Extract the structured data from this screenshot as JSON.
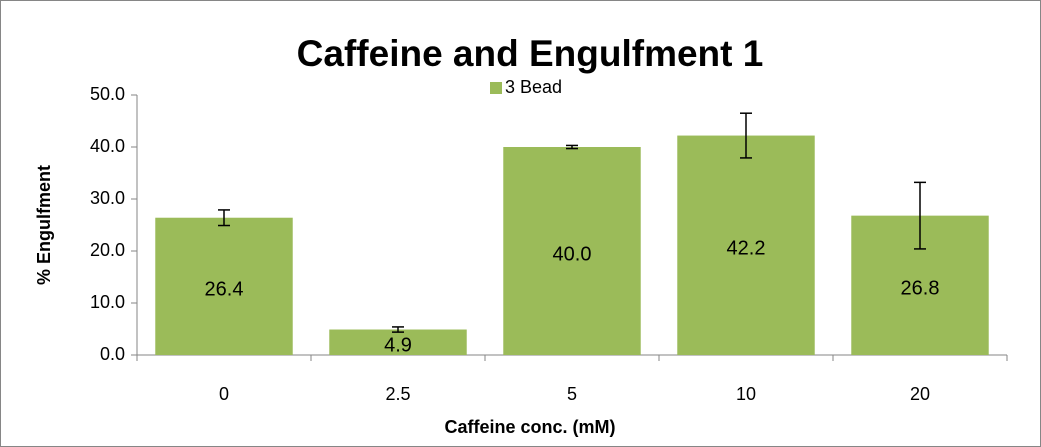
{
  "chart_data": {
    "type": "bar",
    "title": "Caffeine and Engulfment 1",
    "x_label": "Caffeine conc. (mM)",
    "y_label": "% Engulfment",
    "categories": [
      "0",
      "2.5",
      "5",
      "10",
      "20"
    ],
    "series": [
      {
        "name": "3 Bead",
        "color": "#9bbb59",
        "values": [
          26.4,
          4.9,
          40.0,
          42.2,
          26.8
        ],
        "value_labels": [
          "26.4",
          "4.9",
          "40.0",
          "42.2",
          "26.8"
        ],
        "errors": [
          1.5,
          0.5,
          0.3,
          4.3,
          6.4
        ]
      }
    ],
    "ylim": [
      0,
      50
    ],
    "yticks": [
      {
        "value": 0,
        "label": "0.0"
      },
      {
        "value": 10,
        "label": "10.0"
      },
      {
        "value": 20,
        "label": "20.0"
      },
      {
        "value": 30,
        "label": "30.0"
      },
      {
        "value": 40,
        "label": "40.0"
      },
      {
        "value": 50,
        "label": "50.0"
      }
    ],
    "legend": "top",
    "grid": false
  }
}
